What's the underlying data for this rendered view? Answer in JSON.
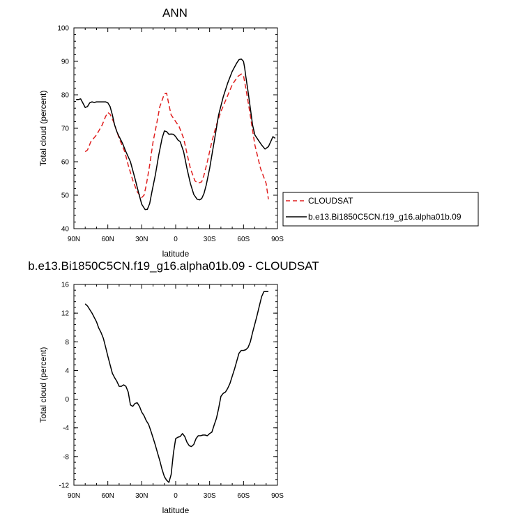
{
  "chart_data": [
    {
      "type": "line",
      "title": "ANN",
      "xlabel": "latitude",
      "ylabel": "Total cloud (percent)",
      "xlim": [
        90,
        -90
      ],
      "ylim": [
        40,
        100
      ],
      "x_ticks": [
        90,
        60,
        30,
        0,
        -30,
        -60,
        -90
      ],
      "x_tick_labels": [
        "90N",
        "60N",
        "30N",
        "0",
        "30S",
        "60S",
        "90S"
      ],
      "y_ticks": [
        40,
        50,
        60,
        70,
        80,
        90,
        100
      ],
      "y_tick_labels": [
        "40",
        "50",
        "60",
        "70",
        "80",
        "90",
        "100"
      ],
      "legend_position": "right",
      "series": [
        {
          "name": "CLOUDSAT",
          "color": "#e02020",
          "dash": "dashed",
          "x": [
            80,
            78,
            75,
            70,
            65,
            62,
            60,
            58,
            55,
            50,
            45,
            42,
            38,
            34,
            30,
            28,
            26,
            23,
            20,
            17,
            14,
            10,
            8,
            6,
            4,
            2,
            0,
            -3,
            -7,
            -10,
            -13,
            -17,
            -20,
            -23,
            -25,
            -28,
            -32,
            -36,
            -40,
            -45,
            -50,
            -55,
            -58,
            -60,
            -62,
            -65,
            -70,
            -75,
            -80,
            -82
          ],
          "y": [
            63,
            63.5,
            66,
            68,
            71,
            73.5,
            74.7,
            74.2,
            72,
            67,
            63,
            59,
            54.5,
            51,
            49.3,
            50,
            53,
            59,
            66,
            71,
            76.5,
            80.3,
            80.5,
            77,
            74,
            73,
            72,
            70.5,
            67,
            62.5,
            58,
            54.3,
            53.6,
            54,
            56,
            60,
            66,
            71,
            75,
            79,
            83,
            85.5,
            86.2,
            85.7,
            82,
            76,
            65,
            58,
            53.5,
            48.8
          ]
        },
        {
          "name": "b.e13.Bi1850C5CN.f19_g16.alpha01b.09",
          "color": "#000000",
          "dash": "solid",
          "x": [
            88,
            86,
            84,
            82,
            80,
            78,
            76,
            74,
            72,
            70,
            66,
            62,
            60,
            58,
            56,
            54,
            52,
            50,
            47,
            44,
            40,
            36,
            33,
            30,
            27,
            25,
            23,
            21,
            18,
            15,
            12,
            10,
            8,
            6,
            4,
            2,
            0,
            -2,
            -4,
            -7,
            -10,
            -13,
            -16,
            -19,
            -21,
            -23,
            -25,
            -27,
            -30,
            -34,
            -38,
            -42,
            -46,
            -50,
            -54,
            -56,
            -58,
            -60,
            -61,
            -62,
            -64,
            -66,
            -68,
            -70,
            -73,
            -76,
            -79,
            -82,
            -84,
            -86,
            -88
          ],
          "y": [
            78.6,
            78.6,
            78.8,
            77.5,
            76.2,
            76.5,
            77.6,
            77.9,
            77.7,
            77.9,
            77.9,
            77.9,
            77.6,
            76.5,
            74,
            71,
            69,
            67.5,
            65.5,
            63,
            60,
            55,
            51,
            47.3,
            45.7,
            45.8,
            47.5,
            51,
            56,
            62,
            67,
            69.2,
            69,
            68.2,
            68.3,
            68.2,
            67.5,
            66.5,
            66,
            63,
            58,
            53.5,
            50.2,
            48.8,
            48.6,
            49,
            50.5,
            53,
            58,
            66,
            74,
            79.3,
            83.5,
            87,
            89.5,
            90.5,
            90.7,
            90,
            88,
            85.5,
            81,
            76,
            71,
            68,
            66.5,
            65,
            63.8,
            64.5,
            66,
            67.5,
            67
          ]
        }
      ]
    },
    {
      "type": "line",
      "title": "b.e13.Bi1850C5CN.f19_g16.alpha01b.09 - CLOUDSAT",
      "xlabel": "latitude",
      "ylabel": "Total cloud (percent)",
      "xlim": [
        90,
        -90
      ],
      "ylim": [
        -12,
        16
      ],
      "x_ticks": [
        90,
        60,
        30,
        0,
        -30,
        -60,
        -90
      ],
      "x_tick_labels": [
        "90N",
        "60N",
        "30N",
        "0",
        "30S",
        "60S",
        "90S"
      ],
      "y_ticks": [
        -12,
        -8,
        -4,
        0,
        4,
        8,
        12,
        16
      ],
      "y_tick_labels": [
        "-12",
        "-8",
        "-4",
        "0",
        "4",
        "8",
        "12",
        "16"
      ],
      "series": [
        {
          "color": "#000000",
          "dash": "solid",
          "x": [
            80,
            78,
            76,
            74,
            72,
            70,
            68,
            66,
            64,
            62,
            60,
            58,
            56,
            54,
            52,
            50,
            48,
            46,
            44,
            42,
            40,
            38,
            36,
            34,
            32,
            30,
            28,
            26,
            24,
            22,
            20,
            18,
            16,
            14,
            12,
            10,
            8,
            6,
            4,
            2,
            0,
            -2,
            -4,
            -6,
            -8,
            -10,
            -12,
            -14,
            -16,
            -18,
            -20,
            -22,
            -24,
            -26,
            -28,
            -30,
            -32,
            -34,
            -36,
            -38,
            -40,
            -42,
            -44,
            -46,
            -48,
            -50,
            -52,
            -54,
            -56,
            -58,
            -60,
            -62,
            -64,
            -66,
            -68,
            -70,
            -72,
            -74,
            -76,
            -78,
            -80,
            -82
          ],
          "y": [
            13.3,
            13,
            12.5,
            12,
            11.4,
            10.8,
            9.9,
            9.3,
            8.5,
            7.3,
            6,
            4.8,
            3.6,
            3,
            2.5,
            1.8,
            1.8,
            2,
            1.8,
            1,
            -0.8,
            -1,
            -0.6,
            -0.5,
            -1,
            -1.8,
            -2.3,
            -3,
            -3.5,
            -4.4,
            -5.4,
            -6.4,
            -7.5,
            -8.6,
            -9.8,
            -10.8,
            -11.3,
            -11.6,
            -10.5,
            -7.5,
            -5.5,
            -5.3,
            -5.2,
            -4.8,
            -5.2,
            -6,
            -6.5,
            -6.6,
            -6.3,
            -5.5,
            -5.1,
            -5.1,
            -5,
            -5,
            -5.1,
            -4.8,
            -4.6,
            -3.6,
            -2.7,
            -1.3,
            0.4,
            0.8,
            1,
            1.5,
            2.2,
            3.2,
            4.2,
            5.3,
            6.4,
            6.8,
            6.8,
            6.9,
            7.2,
            8,
            9.3,
            10.5,
            11.7,
            13,
            14.3,
            15,
            15,
            15
          ]
        }
      ]
    }
  ]
}
